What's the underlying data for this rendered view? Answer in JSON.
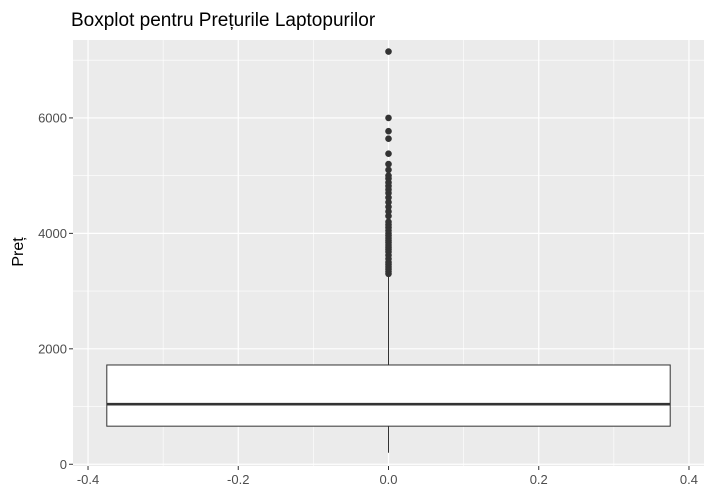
{
  "chart_data": {
    "type": "boxplot",
    "title": "Boxplot pentru Prețurile Laptopurilor",
    "xlabel": "",
    "ylabel": "Preț",
    "xlim": [
      -0.42,
      0.42
    ],
    "ylim": [
      -30,
      7350
    ],
    "x_ticks": [
      -0.4,
      -0.2,
      0.0,
      0.2,
      0.4
    ],
    "x_tick_labels": [
      "-0.4",
      "-0.2",
      "0.0",
      "0.2",
      "0.4"
    ],
    "y_ticks": [
      0,
      2000,
      4000,
      6000
    ],
    "y_tick_labels": [
      "0",
      "2000",
      "4000",
      "6000"
    ],
    "grid": true,
    "box": {
      "x_center": 0.0,
      "x_left": -0.375,
      "x_right": 0.375,
      "whisker_low": 200,
      "q1": 660,
      "median": 1040,
      "q3": 1720,
      "whisker_high": 3280
    },
    "outliers": [
      3300,
      3340,
      3380,
      3420,
      3460,
      3500,
      3560,
      3620,
      3680,
      3720,
      3760,
      3800,
      3840,
      3880,
      3920,
      3960,
      4000,
      4050,
      4100,
      4150,
      4200,
      4300,
      4380,
      4460,
      4540,
      4620,
      4700,
      4760,
      4820,
      4880,
      4950,
      5000,
      5100,
      5200,
      5380,
      5640,
      5770,
      6000,
      7150
    ],
    "colors": {
      "panel": "#ebebeb",
      "grid_major": "#ffffff",
      "box_fill": "#ffffff",
      "box_line": "#333333",
      "points": "#333333",
      "tick_text": "#4d4d4d"
    }
  }
}
